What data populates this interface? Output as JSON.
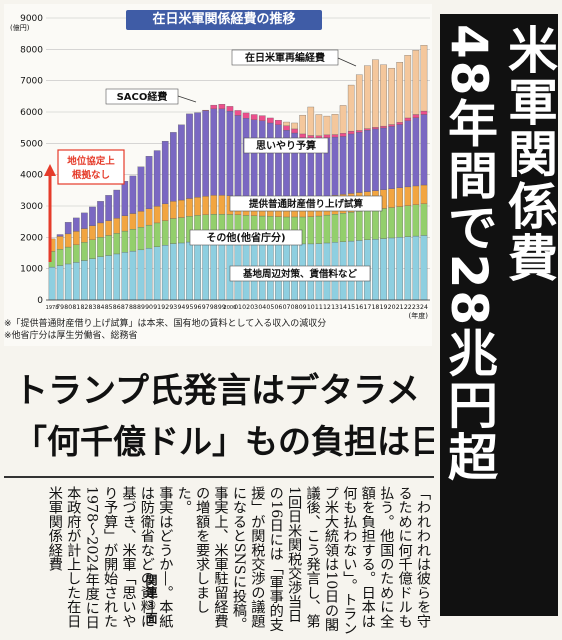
{
  "chart": {
    "title": "在日米軍関係経費の推移",
    "year_axis_unit": "(年度)",
    "y_unit": "(億円)",
    "notes": [
      "※「提供普通財産借り上げ試算」は本来、国有地の賃料として入る収入の減収分",
      "※他省庁分は厚生労働省、総務省"
    ]
  },
  "chart_data": {
    "type": "bar",
    "stacked": true,
    "title": "在日米軍関係経費の推移",
    "ylabel": "(億円)",
    "xlabel": "(年度)",
    "ylim": [
      0,
      9000
    ],
    "yticks": [
      0,
      1000,
      2000,
      3000,
      4000,
      5000,
      6000,
      7000,
      8000,
      9000
    ],
    "x": [
      "1978",
      "79",
      "80",
      "81",
      "82",
      "83",
      "84",
      "85",
      "86",
      "87",
      "88",
      "89",
      "90",
      "91",
      "92",
      "93",
      "94",
      "95",
      "96",
      "97",
      "98",
      "99",
      "2000",
      "01",
      "02",
      "03",
      "04",
      "05",
      "06",
      "07",
      "08",
      "09",
      "10",
      "11",
      "12",
      "13",
      "14",
      "15",
      "16",
      "17",
      "18",
      "19",
      "20",
      "21",
      "22",
      "23",
      "24"
    ],
    "series": [
      {
        "name": "基地周辺対策、賃借料など",
        "color": "#8ecfe0",
        "values": [
          1050,
          1100,
          1150,
          1200,
          1260,
          1320,
          1380,
          1420,
          1470,
          1520,
          1560,
          1600,
          1650,
          1700,
          1750,
          1800,
          1820,
          1850,
          1870,
          1880,
          1890,
          1890,
          1880,
          1870,
          1850,
          1840,
          1830,
          1820,
          1810,
          1800,
          1790,
          1790,
          1790,
          1800,
          1820,
          1840,
          1860,
          1880,
          1900,
          1920,
          1940,
          1960,
          1980,
          2000,
          2020,
          2040,
          2060
        ]
      },
      {
        "name": "その他(他省庁分)",
        "color": "#93cf6c",
        "values": [
          500,
          520,
          540,
          560,
          580,
          600,
          620,
          640,
          660,
          680,
          700,
          720,
          740,
          760,
          780,
          800,
          810,
          820,
          830,
          840,
          850,
          850,
          850,
          850,
          850,
          850,
          850,
          850,
          850,
          850,
          860,
          860,
          870,
          880,
          890,
          900,
          910,
          920,
          930,
          940,
          950,
          960,
          970,
          980,
          990,
          1000,
          1010
        ]
      },
      {
        "name": "提供普通財産借り上げ試算",
        "color": "#f2a540",
        "values": [
          400,
          410,
          420,
          430,
          440,
          450,
          460,
          470,
          480,
          490,
          500,
          510,
          520,
          530,
          540,
          550,
          560,
          570,
          580,
          590,
          600,
          600,
          600,
          600,
          600,
          600,
          600,
          600,
          600,
          600,
          600,
          600,
          600,
          600,
          600,
          600,
          600,
          600,
          600,
          600,
          600,
          600,
          600,
          600,
          600,
          600,
          600
        ]
      },
      {
        "name": "思いやり予算",
        "color": "#7a68c2",
        "values": [
          0,
          60,
          370,
          430,
          500,
          600,
          690,
          810,
          900,
          1100,
          1200,
          1420,
          1680,
          1780,
          2000,
          2200,
          2400,
          2700,
          2700,
          2730,
          2760,
          2760,
          2700,
          2570,
          2500,
          2460,
          2440,
          2380,
          2330,
          2170,
          2080,
          1930,
          1880,
          1860,
          1870,
          1860,
          1850,
          1900,
          1920,
          1960,
          1970,
          1970,
          1990,
          2020,
          2110,
          2180,
          2250
        ]
      },
      {
        "name": "SACO経費",
        "color": "#ec4f8c",
        "values": [
          0,
          0,
          0,
          0,
          0,
          0,
          0,
          0,
          0,
          0,
          0,
          0,
          0,
          0,
          0,
          0,
          0,
          0,
          0,
          20,
          120,
          150,
          150,
          160,
          170,
          170,
          165,
          160,
          150,
          140,
          130,
          120,
          110,
          100,
          90,
          80,
          100,
          90,
          60,
          50,
          50,
          60,
          60,
          70,
          90,
          100,
          110
        ]
      },
      {
        "name": "在日米軍再編経費",
        "color": "#f4c79c",
        "values": [
          0,
          0,
          0,
          0,
          0,
          0,
          0,
          0,
          0,
          0,
          0,
          0,
          0,
          0,
          0,
          0,
          0,
          0,
          0,
          0,
          0,
          0,
          0,
          0,
          0,
          0,
          0,
          0,
          0,
          120,
          190,
          600,
          910,
          680,
          600,
          650,
          890,
          1470,
          1780,
          2010,
          2160,
          1960,
          1800,
          1920,
          2000,
          2050,
          2100
        ]
      }
    ]
  },
  "chart_labels": {
    "saco": "SACO経費",
    "realign": "在日米軍再編経費",
    "omoiyari": "思いやり予算",
    "provided": "提供普通財産借り上げ試算",
    "other": "その他(他省庁分)",
    "base": "基地周辺対策、賃借料など",
    "status_line1": "地位協定上",
    "status_line2": "根拠なし"
  },
  "headline": {
    "line1": "米軍関係費",
    "line2": "48年間で28兆円超"
  },
  "subheads": {
    "line1": "トランプ氏発言はデタラメ",
    "line2": "「何千億ドル」もの負担は日本"
  },
  "article": {
    "paragraphs": [
      "「われわれは彼らを守るために何千億ドルも払う。他国のために全額を負担する。日本は何も払わない」。トランプ米大統領は10日の閣議後、こう発言し、第1回日米関税交渉当日の16日には「軍事的支援」が関税交渉の議題になるとSNSに投稿。事実上、米軍駐留経費の増額を要求しました。",
      "事実はどうか―。本紙は防衛省などの資料に基づき、米軍「思いやり予算」が開始された1978～2024年度に日本政府が計上した在日米軍関係経費"
    ],
    "ref": "関連③面"
  }
}
